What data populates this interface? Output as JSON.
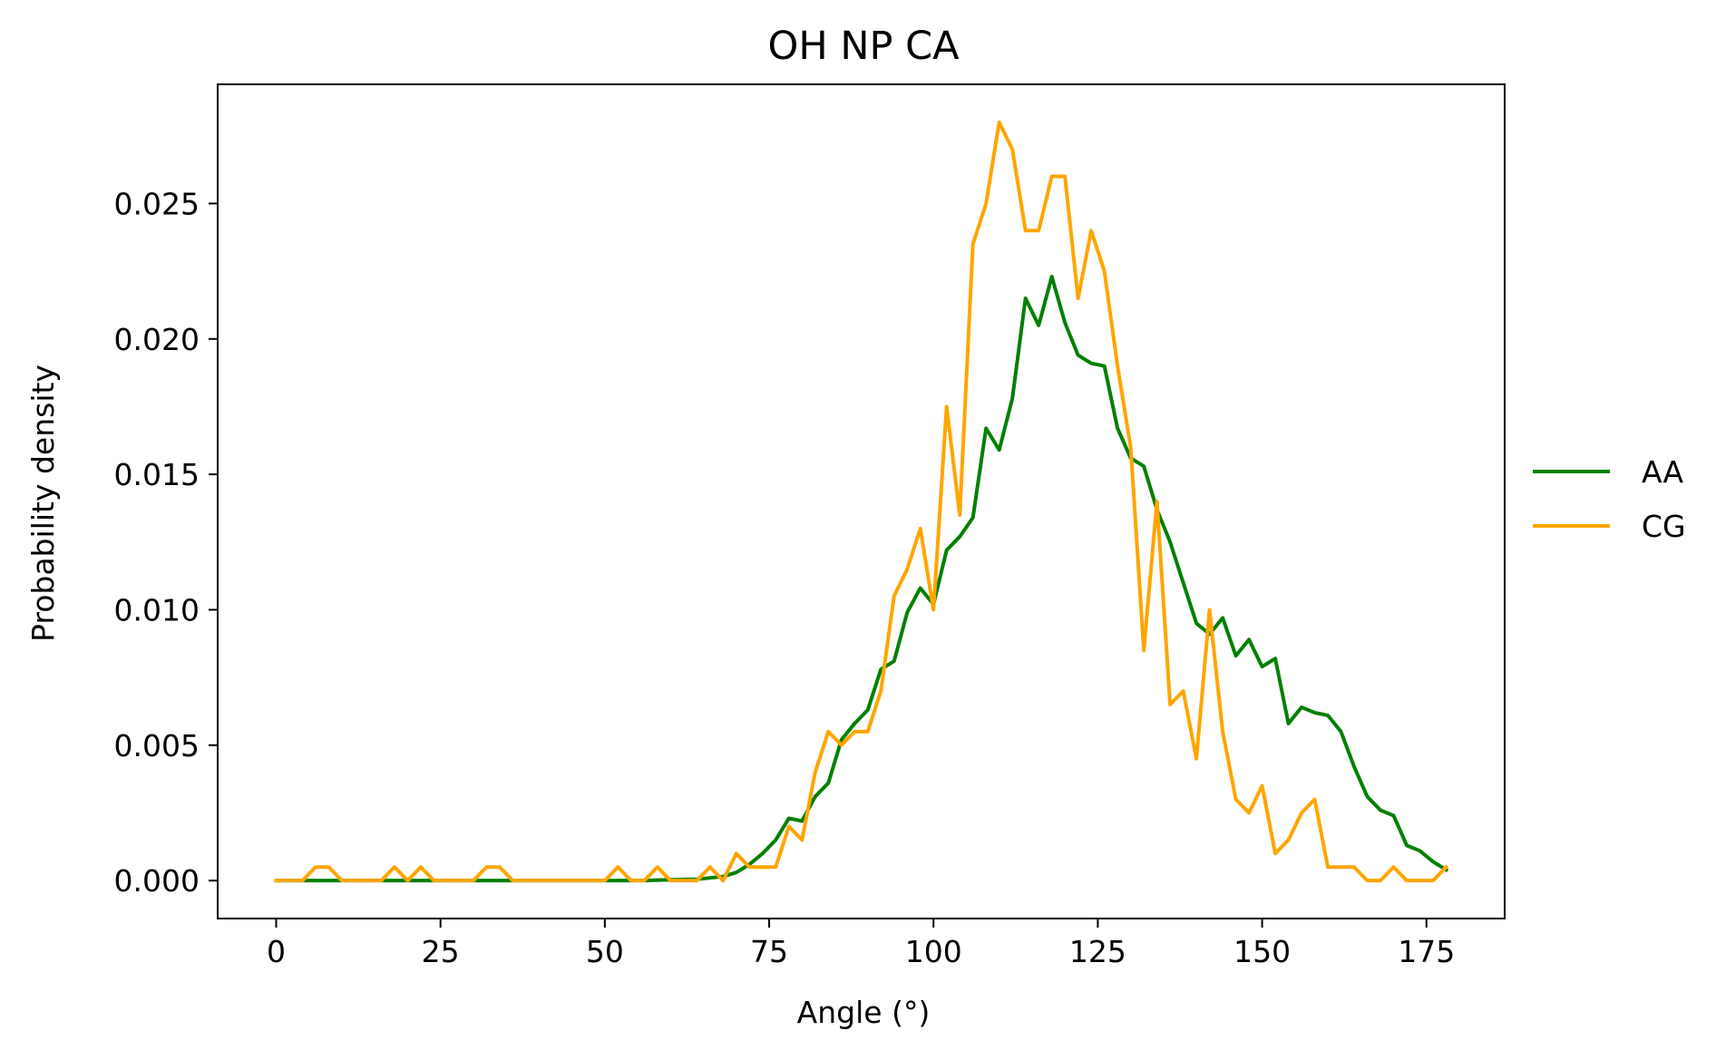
{
  "chart_data": {
    "type": "line",
    "title": "OH NP CA",
    "xlabel": "Angle (°)",
    "ylabel": "Probability density",
    "xlim": [
      -8.9,
      186.9
    ],
    "ylim": [
      -0.0014,
      0.0294
    ],
    "xticks": [
      0,
      25,
      50,
      75,
      100,
      125,
      150,
      175
    ],
    "xtick_labels": [
      "0",
      "25",
      "50",
      "75",
      "100",
      "125",
      "150",
      "175"
    ],
    "yticks": [
      0.0,
      0.005,
      0.01,
      0.015,
      0.02,
      0.025
    ],
    "ytick_labels": [
      "0.000",
      "0.005",
      "0.010",
      "0.015",
      "0.020",
      "0.025"
    ],
    "grid": false,
    "legend_position": "center-right outside",
    "x": [
      0,
      2,
      4,
      6,
      8,
      10,
      12,
      14,
      16,
      18,
      20,
      22,
      24,
      26,
      28,
      30,
      32,
      34,
      36,
      38,
      40,
      42,
      44,
      46,
      48,
      50,
      52,
      54,
      56,
      58,
      60,
      62,
      64,
      66,
      68,
      70,
      72,
      74,
      76,
      78,
      80,
      82,
      84,
      86,
      88,
      90,
      92,
      94,
      96,
      98,
      100,
      102,
      104,
      106,
      108,
      110,
      112,
      114,
      116,
      118,
      120,
      122,
      124,
      126,
      128,
      130,
      132,
      134,
      136,
      138,
      140,
      142,
      144,
      146,
      148,
      150,
      152,
      154,
      156,
      158,
      160,
      162,
      164,
      166,
      168,
      170,
      172,
      174,
      176,
      178
    ],
    "series": [
      {
        "name": "AA",
        "color": "#008000",
        "values": [
          0,
          0,
          0,
          0,
          0,
          0,
          0,
          0,
          0,
          0,
          0,
          0,
          0,
          0,
          0,
          0,
          0,
          0,
          0,
          0,
          0,
          0,
          0,
          0,
          0,
          0,
          0,
          0,
          0,
          2e-05,
          3e-05,
          4e-05,
          5e-05,
          0.0001,
          0.00015,
          0.0003,
          0.0006,
          0.001,
          0.0015,
          0.0023,
          0.0022,
          0.0031,
          0.0036,
          0.0052,
          0.0058,
          0.0063,
          0.0078,
          0.0081,
          0.0099,
          0.0108,
          0.0102,
          0.0122,
          0.0127,
          0.0134,
          0.0167,
          0.0159,
          0.0178,
          0.0215,
          0.0205,
          0.0223,
          0.0206,
          0.0194,
          0.0191,
          0.019,
          0.0167,
          0.0156,
          0.0153,
          0.0137,
          0.0125,
          0.011,
          0.0095,
          0.0091,
          0.0097,
          0.0083,
          0.0089,
          0.0079,
          0.0082,
          0.0058,
          0.0064,
          0.0062,
          0.0061,
          0.0055,
          0.0042,
          0.0031,
          0.0026,
          0.0024,
          0.0013,
          0.0011,
          0.0007,
          0.0004
        ]
      },
      {
        "name": "CG",
        "color": "#ffa500",
        "values": [
          0,
          0,
          0,
          0.0005,
          0.0005,
          0,
          0,
          0,
          0,
          0.0005,
          0,
          0.0005,
          0,
          0,
          0,
          0,
          0.0005,
          0.0005,
          0,
          0,
          0,
          0,
          0,
          0,
          0,
          0,
          0.0005,
          0,
          0,
          0.0005,
          0,
          0,
          0,
          0.0005,
          0,
          0.001,
          0.0005,
          0.0005,
          0.0005,
          0.002,
          0.0015,
          0.004,
          0.0055,
          0.005,
          0.0055,
          0.0055,
          0.007,
          0.0105,
          0.0115,
          0.013,
          0.01,
          0.0175,
          0.0135,
          0.0235,
          0.025,
          0.028,
          0.027,
          0.024,
          0.024,
          0.026,
          0.026,
          0.0215,
          0.024,
          0.0225,
          0.019,
          0.016,
          0.0085,
          0.014,
          0.0065,
          0.007,
          0.0045,
          0.01,
          0.0055,
          0.003,
          0.0025,
          0.0035,
          0.001,
          0.0015,
          0.0025,
          0.003,
          0.0005,
          0.0005,
          0.0005,
          0,
          0,
          0.0005,
          0,
          0,
          0,
          0.0005
        ]
      }
    ]
  }
}
